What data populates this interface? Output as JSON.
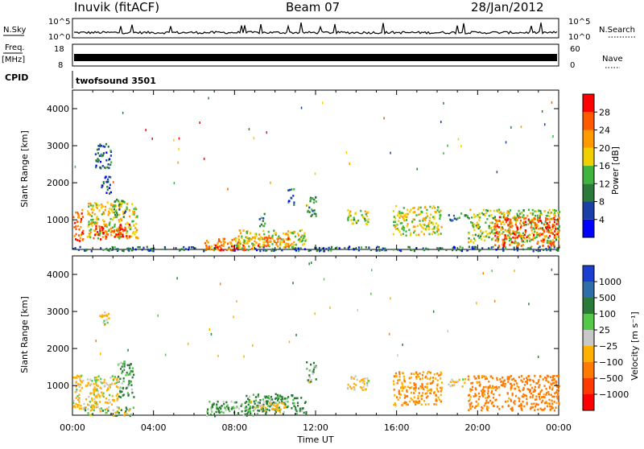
{
  "header": {
    "station": "Inuvik (fitACF)",
    "beam": "Beam 07",
    "date": "28/Jan/2012"
  },
  "top_panels": {
    "nsky_label": "N.Sky",
    "nsky_ticks": [
      "10^5",
      "10^0"
    ],
    "nsearch_label": "N.Search",
    "nsearch_ticks": [
      "10^5",
      "10^0"
    ],
    "freq_label": "Freq.",
    "freq_unit": "[MHz]",
    "freq_ticks": [
      "18",
      "8"
    ],
    "nave_label": "Nave",
    "nave_ticks": [
      "60",
      "0"
    ],
    "cpid_label": "CPID",
    "cpid_value": "twofsound 3501"
  },
  "x_axis": {
    "label": "Time UT",
    "ticks": [
      "00:00",
      "04:00",
      "08:00",
      "12:00",
      "16:00",
      "20:00",
      "00:00"
    ]
  },
  "chart_data": [
    {
      "type": "heatmap",
      "name": "power",
      "xlabel": "Time UT",
      "ylabel": "Slant Range [km]",
      "xlim_hours": [
        0,
        24
      ],
      "ylim_km": [
        200,
        4500
      ],
      "y_ticks": [
        "1000",
        "2000",
        "3000",
        "4000"
      ],
      "y_tick_values": [
        1000,
        2000,
        3000,
        4000
      ],
      "colorbar": {
        "label": "Power [dB]",
        "ticks": [
          "4",
          "8",
          "12",
          "16",
          "20",
          "24",
          "28"
        ],
        "min": 0,
        "max": 32,
        "colors": [
          "#0000ff",
          "#1a3fa8",
          "#2b7a3a",
          "#3fb53f",
          "#f0d000",
          "#ff9a00",
          "#ff5a00",
          "#ff0000"
        ]
      },
      "echo_regions": [
        {
          "t0": 0.0,
          "t1": 0.5,
          "r0": 400,
          "r1": 1300,
          "dB": 26
        },
        {
          "t0": 0.7,
          "t1": 3.2,
          "r0": 500,
          "r1": 1500,
          "dB": 18
        },
        {
          "t0": 1.0,
          "t1": 2.8,
          "r0": 500,
          "r1": 900,
          "dB": 28
        },
        {
          "t0": 2.0,
          "t1": 2.6,
          "r0": 1100,
          "r1": 1600,
          "dB": 12
        },
        {
          "t0": 1.1,
          "t1": 1.9,
          "r0": 2400,
          "r1": 3100,
          "dB": 8
        },
        {
          "t0": 1.4,
          "t1": 1.9,
          "r0": 1700,
          "r1": 2200,
          "dB": 6
        },
        {
          "t0": 0.0,
          "t1": 24.0,
          "r0": 180,
          "r1": 300,
          "dB": 8
        },
        {
          "t0": 6.5,
          "t1": 9.0,
          "r0": 200,
          "r1": 550,
          "dB": 22
        },
        {
          "t0": 7.0,
          "t1": 8.4,
          "r0": 200,
          "r1": 350,
          "dB": 28
        },
        {
          "t0": 8.0,
          "t1": 11.5,
          "r0": 250,
          "r1": 750,
          "dB": 18
        },
        {
          "t0": 9.0,
          "t1": 10.8,
          "r0": 300,
          "r1": 550,
          "dB": 24
        },
        {
          "t0": 11.5,
          "t1": 12.0,
          "r0": 1100,
          "r1": 1700,
          "dB": 12
        },
        {
          "t0": 10.6,
          "t1": 10.9,
          "r0": 1400,
          "r1": 1900,
          "dB": 8
        },
        {
          "t0": 9.2,
          "t1": 9.5,
          "r0": 850,
          "r1": 1250,
          "dB": 10
        },
        {
          "t0": 13.5,
          "t1": 14.6,
          "r0": 900,
          "r1": 1300,
          "dB": 16
        },
        {
          "t0": 15.8,
          "t1": 18.2,
          "r0": 600,
          "r1": 1400,
          "dB": 18
        },
        {
          "t0": 18.5,
          "t1": 19.5,
          "r0": 1000,
          "r1": 1200,
          "dB": 12
        },
        {
          "t0": 19.5,
          "t1": 24.0,
          "r0": 400,
          "r1": 1300,
          "dB": 16
        },
        {
          "t0": 20.8,
          "t1": 24.0,
          "r0": 300,
          "r1": 1100,
          "dB": 26
        }
      ]
    },
    {
      "type": "heatmap",
      "name": "velocity",
      "xlabel": "Time UT",
      "ylabel": "Slant Range [km]",
      "xlim_hours": [
        0,
        24
      ],
      "ylim_km": [
        200,
        4500
      ],
      "y_ticks": [
        "1000",
        "2000",
        "3000",
        "4000"
      ],
      "y_tick_values": [
        1000,
        2000,
        3000,
        4000
      ],
      "colorbar": {
        "label": "Velocity [m s⁻¹]",
        "ticks": [
          "1000",
          "500",
          "100",
          "25",
          "−25",
          "−100",
          "−500",
          "−1000"
        ],
        "colors": [
          "#1a3fd0",
          "#2d6ea8",
          "#2b7a3a",
          "#55c84a",
          "#c8c8c8",
          "#ffb000",
          "#ff7a00",
          "#ff3a00",
          "#ff0000"
        ]
      },
      "echo_regions": [
        {
          "t0": 0.0,
          "t1": 1.2,
          "r0": 400,
          "r1": 1300,
          "v": -100
        },
        {
          "t0": 1.0,
          "t1": 2.2,
          "r0": 500,
          "r1": 1300,
          "v": -80
        },
        {
          "t0": 2.2,
          "t1": 3.0,
          "r0": 700,
          "r1": 1700,
          "v": 100
        },
        {
          "t0": 0.5,
          "t1": 3.0,
          "r0": 200,
          "r1": 450,
          "v": 0
        },
        {
          "t0": 1.3,
          "t1": 1.8,
          "r0": 2600,
          "r1": 3000,
          "v": -100
        },
        {
          "t0": 6.5,
          "t1": 9.0,
          "r0": 200,
          "r1": 600,
          "v": 100
        },
        {
          "t0": 8.5,
          "t1": 11.5,
          "r0": 250,
          "r1": 800,
          "v": 100
        },
        {
          "t0": 8.7,
          "t1": 10.5,
          "r0": 300,
          "r1": 600,
          "v": -100
        },
        {
          "t0": 11.5,
          "t1": 12.0,
          "r0": 1100,
          "r1": 1700,
          "v": 50
        },
        {
          "t0": 13.5,
          "t1": 14.6,
          "r0": 900,
          "r1": 1300,
          "v": -100
        },
        {
          "t0": 15.8,
          "t1": 18.2,
          "r0": 500,
          "r1": 1400,
          "v": -300
        },
        {
          "t0": 18.5,
          "t1": 19.5,
          "r0": 1000,
          "r1": 1200,
          "v": -100
        },
        {
          "t0": 19.5,
          "t1": 24.0,
          "r0": 350,
          "r1": 1300,
          "v": -400
        }
      ]
    }
  ]
}
